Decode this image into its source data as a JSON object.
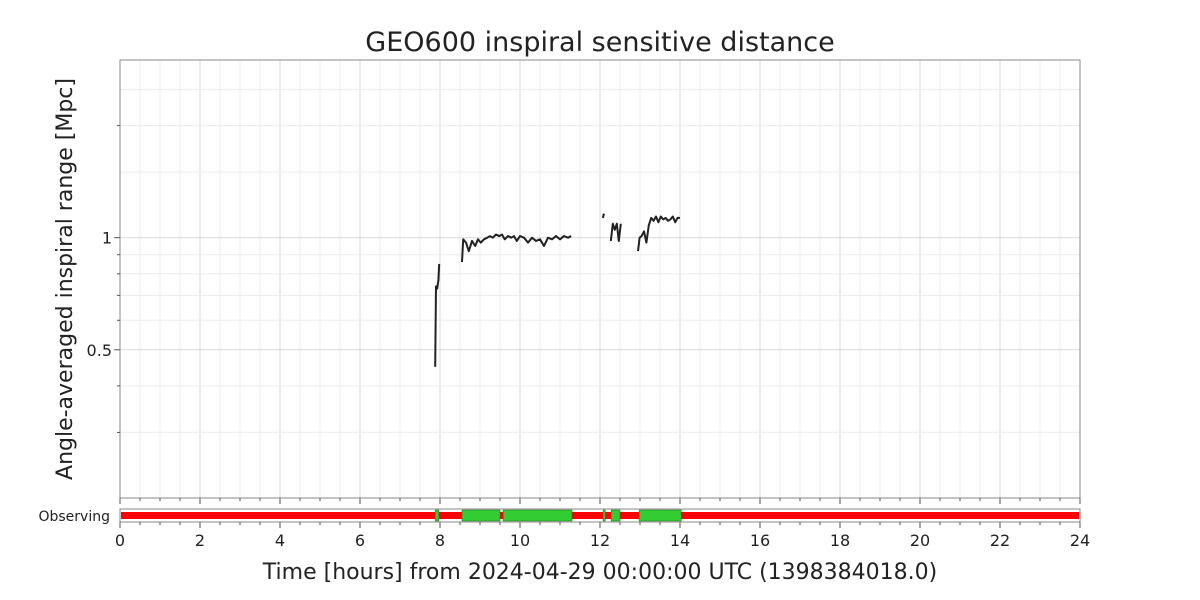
{
  "chart_data": {
    "type": "line",
    "title": "GEO600 inspiral sensitive distance",
    "xlabel": "Time [hours] from 2024-04-29 00:00:00 UTC (1398384018.0)",
    "ylabel": "Angle-averaged inspiral range [Mpc]",
    "xlim": [
      0,
      24
    ],
    "ylim": [
      0.2,
      3.0
    ],
    "yscale": "log",
    "grid": true,
    "x_ticks": [
      0,
      2,
      4,
      6,
      8,
      10,
      12,
      14,
      16,
      18,
      20,
      22,
      24
    ],
    "x_tick_labels": [
      "0",
      "2",
      "4",
      "6",
      "8",
      "10",
      "12",
      "14",
      "16",
      "18",
      "20",
      "22",
      "24"
    ],
    "y_ticks": [
      0.5,
      1
    ],
    "y_tick_labels": [
      "0.5",
      "1"
    ],
    "series": [
      {
        "segments": [
          [
            [
              7.88,
              0.45
            ],
            [
              7.9,
              0.74
            ],
            [
              7.93,
              0.73
            ],
            [
              7.96,
              0.77
            ],
            [
              7.98,
              0.85
            ]
          ],
          [
            [
              8.55,
              0.86
            ],
            [
              8.58,
              0.99
            ],
            [
              8.65,
              0.97
            ],
            [
              8.72,
              0.92
            ],
            [
              8.8,
              0.98
            ],
            [
              8.88,
              0.95
            ],
            [
              8.95,
              0.99
            ],
            [
              9.02,
              0.97
            ],
            [
              9.1,
              0.99
            ],
            [
              9.18,
              1.0
            ],
            [
              9.25,
              1.01
            ],
            [
              9.32,
              1.0
            ],
            [
              9.4,
              1.02
            ],
            [
              9.48,
              1.01
            ],
            [
              9.55,
              1.02
            ],
            [
              9.62,
              0.99
            ],
            [
              9.7,
              1.01
            ],
            [
              9.78,
              1.0
            ],
            [
              9.85,
              1.01
            ],
            [
              9.92,
              0.98
            ],
            [
              10.0,
              1.01
            ],
            [
              10.1,
              1.0
            ],
            [
              10.2,
              0.97
            ],
            [
              10.3,
              1.0
            ],
            [
              10.4,
              0.98
            ],
            [
              10.5,
              0.99
            ],
            [
              10.6,
              0.95
            ],
            [
              10.7,
              1.0
            ],
            [
              10.8,
              0.99
            ],
            [
              10.9,
              1.01
            ],
            [
              11.0,
              0.99
            ],
            [
              11.1,
              1.01
            ],
            [
              11.2,
              1.0
            ],
            [
              11.28,
              1.01
            ]
          ],
          [
            [
              12.07,
              1.13
            ],
            [
              12.1,
              1.16
            ]
          ],
          [
            [
              12.27,
              0.98
            ],
            [
              12.32,
              1.09
            ],
            [
              12.37,
              1.05
            ],
            [
              12.42,
              1.09
            ],
            [
              12.47,
              0.98
            ],
            [
              12.52,
              1.09
            ]
          ],
          [
            [
              12.95,
              0.92
            ],
            [
              12.99,
              1.0
            ],
            [
              13.04,
              1.01
            ],
            [
              13.1,
              1.04
            ],
            [
              13.16,
              0.97
            ],
            [
              13.22,
              1.08
            ],
            [
              13.28,
              1.13
            ],
            [
              13.34,
              1.11
            ],
            [
              13.4,
              1.14
            ],
            [
              13.46,
              1.1
            ],
            [
              13.52,
              1.14
            ],
            [
              13.58,
              1.12
            ],
            [
              13.64,
              1.13
            ],
            [
              13.7,
              1.11
            ],
            [
              13.76,
              1.12
            ],
            [
              13.82,
              1.14
            ],
            [
              13.88,
              1.1
            ],
            [
              13.94,
              1.13
            ],
            [
              14.0,
              1.13
            ]
          ]
        ],
        "color": "#222222"
      }
    ],
    "segments_panel": {
      "label": "Observing",
      "default_color": "#ff0000",
      "active_color": "#33cc33",
      "active": [
        [
          7.88,
          7.97
        ],
        [
          8.55,
          9.5
        ],
        [
          9.58,
          11.3
        ],
        [
          12.08,
          12.13
        ],
        [
          12.28,
          12.5
        ],
        [
          12.98,
          14.03
        ]
      ]
    }
  }
}
